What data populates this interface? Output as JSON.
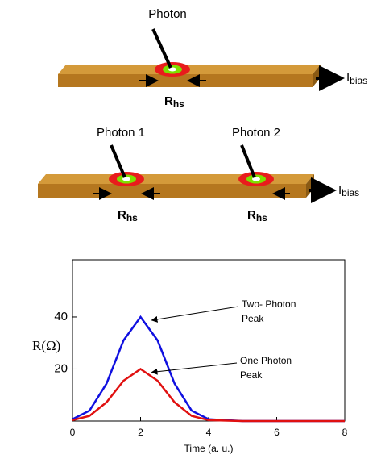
{
  "diagram": {
    "top": {
      "photon": "Photon"
    },
    "bottom": {
      "photon1": "Photon 1",
      "photon2": "Photon 2"
    },
    "rhs": {
      "main": "R",
      "sub": "hs"
    },
    "current": {
      "main": "I",
      "sub": "bias"
    }
  },
  "chart_data": {
    "type": "line",
    "x_label": "Time (a. u.)",
    "y_label": "R(Ω)",
    "x": [
      0,
      0.5,
      1,
      1.5,
      2,
      2.5,
      3,
      3.5,
      4,
      5,
      6,
      7,
      8
    ],
    "series": [
      {
        "color": "#1010e0",
        "values": [
          0.7,
          4.0,
          14.4,
          31.0,
          40,
          31.0,
          14.4,
          4.0,
          0.7,
          0,
          0,
          0,
          0
        ]
      },
      {
        "color": "#e01010",
        "values": [
          0.35,
          2.0,
          7.2,
          15.5,
          20,
          15.5,
          7.2,
          2.0,
          0.35,
          0,
          0,
          0,
          0
        ]
      }
    ],
    "annotations": [
      {
        "lines": [
          "Two- Photon",
          "Peak"
        ],
        "x": 2,
        "y": 40
      },
      {
        "lines": [
          "One Photon",
          "Peak"
        ],
        "x": 2,
        "y": 20
      }
    ],
    "xlim": [
      0,
      8
    ],
    "xticks": [
      0,
      2,
      4,
      6,
      8
    ],
    "ylim": [
      0,
      62
    ],
    "yticks": [
      20,
      40
    ]
  }
}
